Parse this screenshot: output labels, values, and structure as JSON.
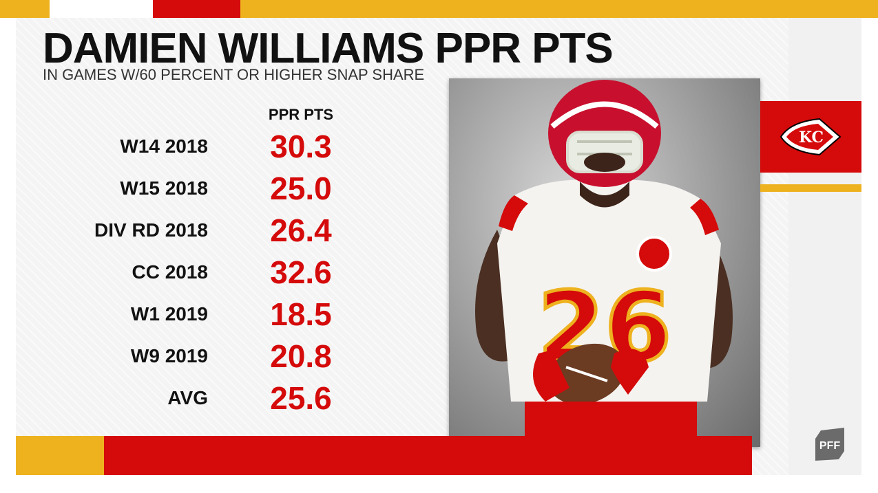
{
  "header": {
    "title": "DAMIEN WILLIAMS PPR PTS",
    "subtitle": "IN GAMES W/60 PERCENT OR HIGHER SNAP SHARE"
  },
  "table": {
    "column_header": "PPR PTS",
    "rows": [
      {
        "label": "W14 2018",
        "value": "30.3"
      },
      {
        "label": "W15 2018",
        "value": "25.0"
      },
      {
        "label": "DIV RD 2018",
        "value": "26.4"
      },
      {
        "label": "CC 2018",
        "value": "32.6"
      },
      {
        "label": "W1 2019",
        "value": "18.5"
      },
      {
        "label": "W9 2019",
        "value": "20.8"
      },
      {
        "label": "AVG",
        "value": "25.6"
      }
    ]
  },
  "photo": {
    "jersey_number": "26"
  },
  "team_logo": {
    "letters": "KC",
    "icon": "arrowhead-logo-icon"
  },
  "brand": {
    "name": "PFF",
    "icon": "pff-logo-icon"
  },
  "colors": {
    "red": "#d50a0a",
    "gold": "#eeb21f",
    "text_dark": "#111111"
  }
}
